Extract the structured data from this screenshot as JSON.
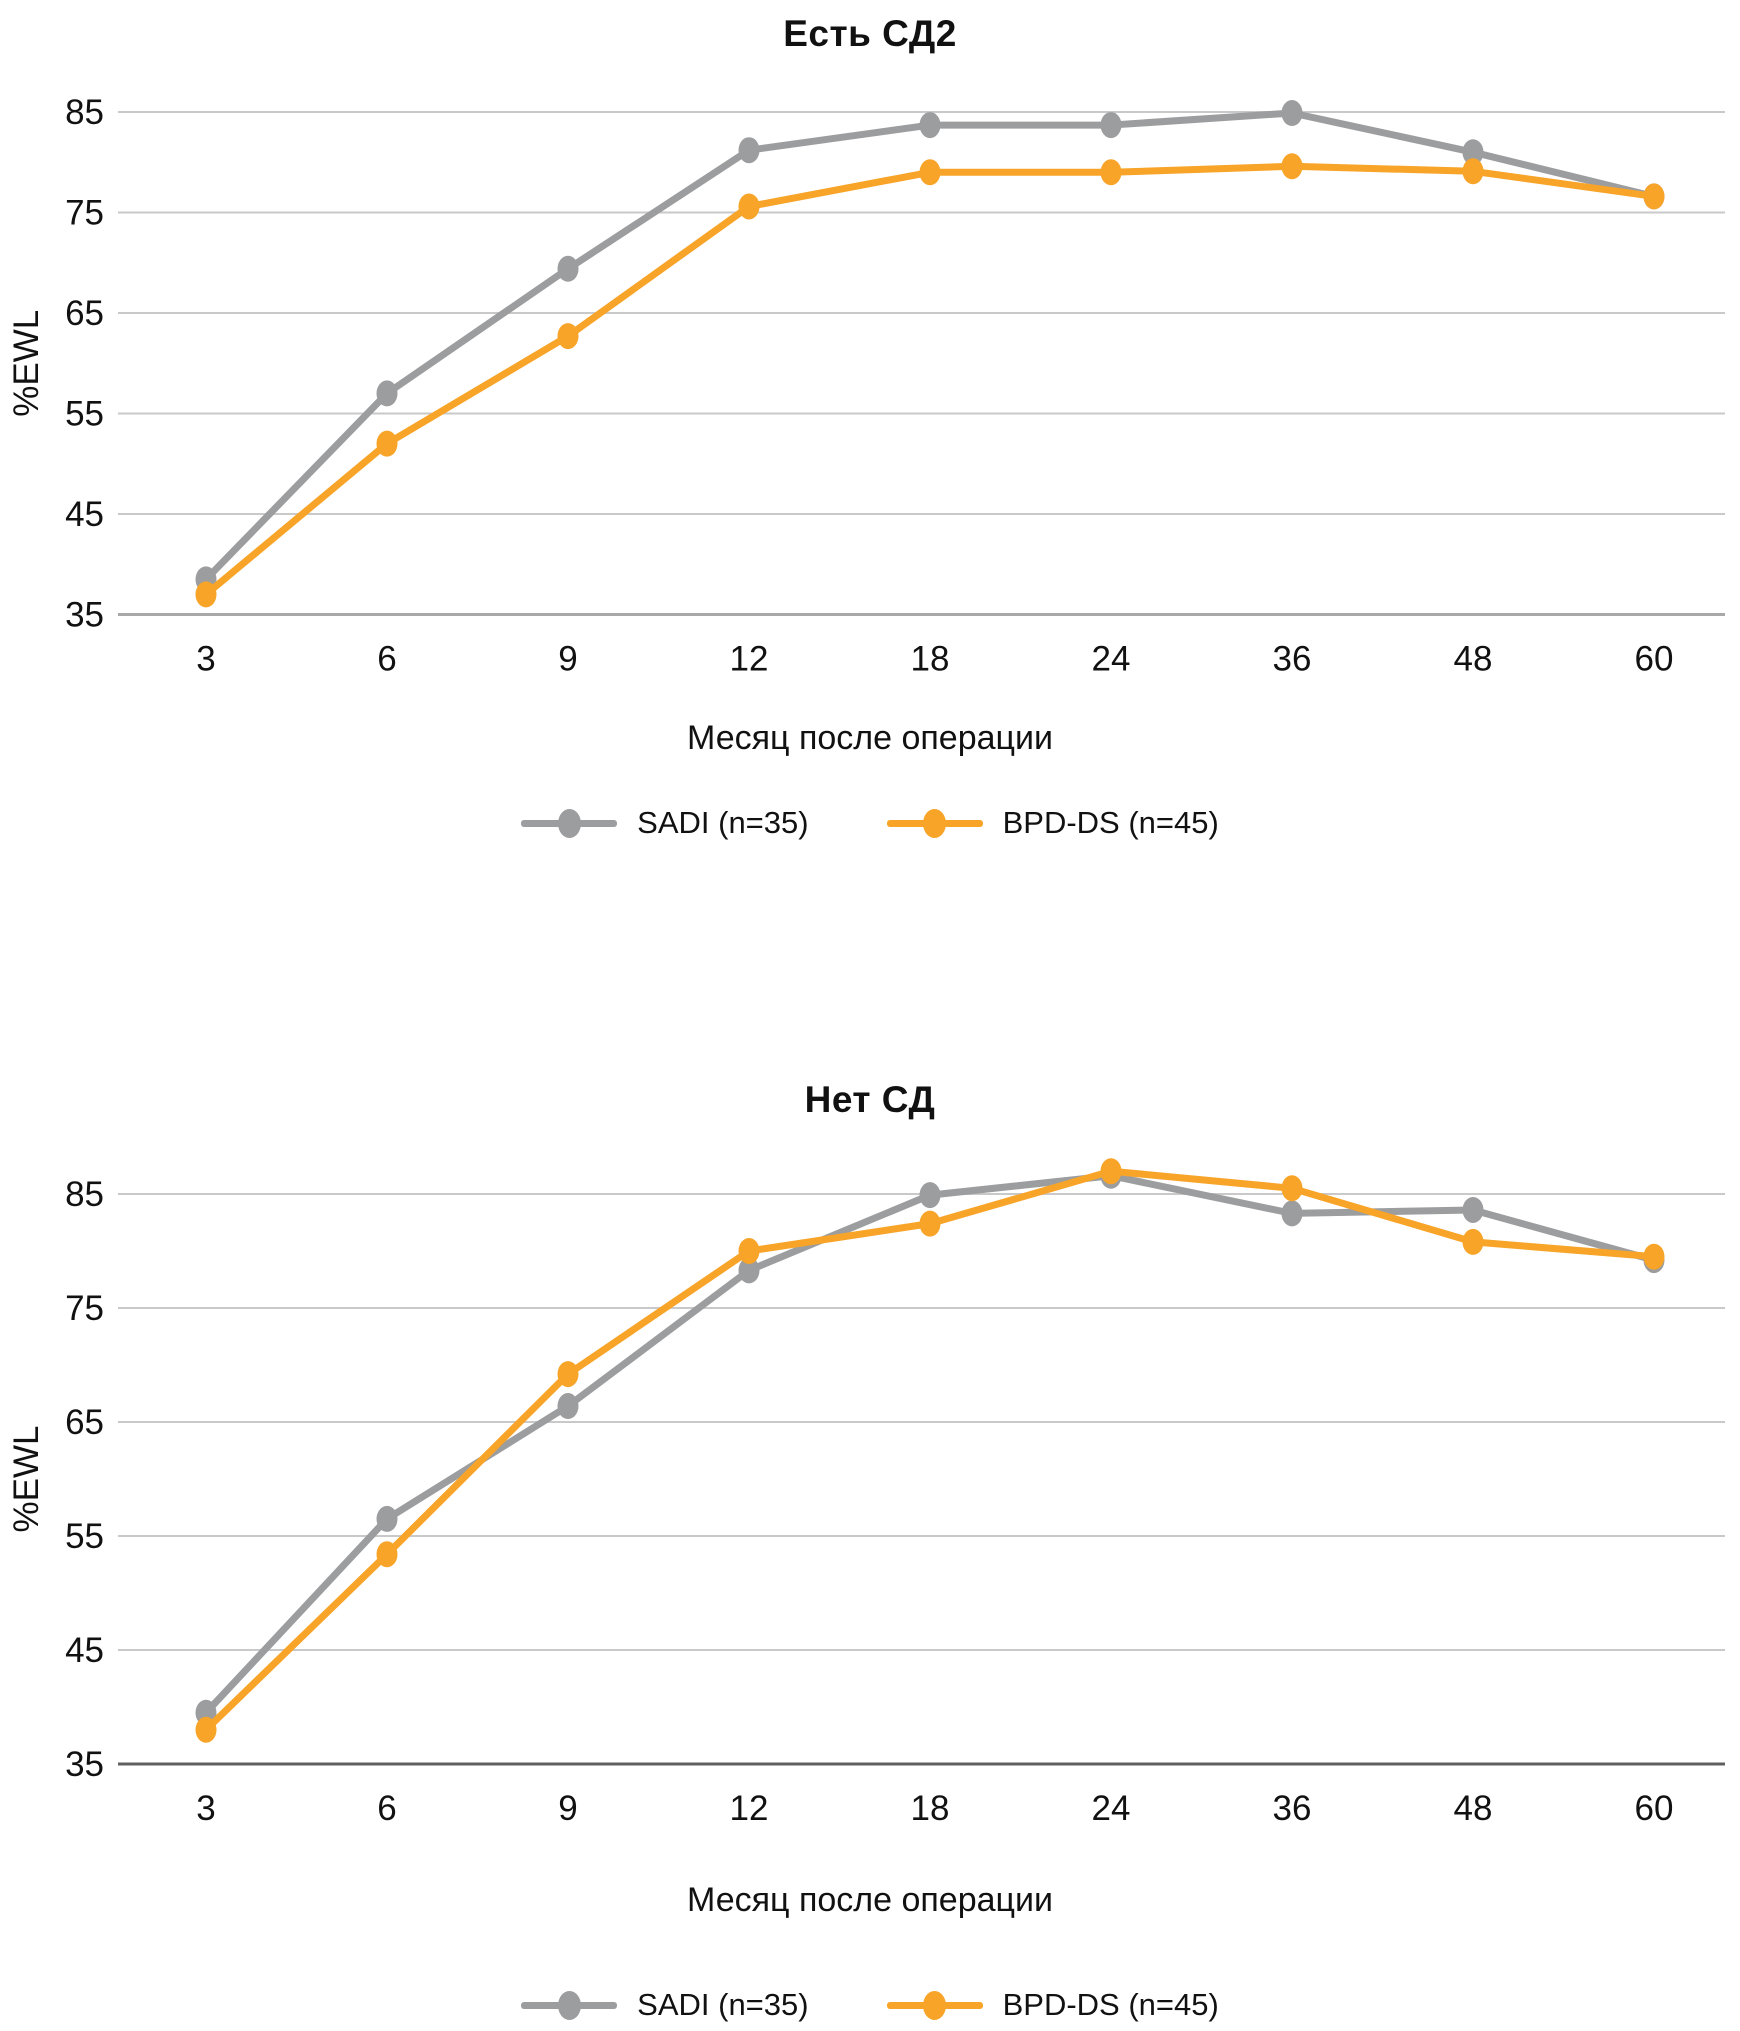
{
  "figure": {
    "background": "#ffffff",
    "text_color": "#111111",
    "gridline_color": "#c9c9c9"
  },
  "chart_data": [
    {
      "type": "line",
      "title": "Есть СД2",
      "xlabel": "Месяц после операции",
      "ylabel": "%EWL",
      "categories": [
        3,
        6,
        9,
        12,
        18,
        24,
        36,
        48,
        60
      ],
      "x_axis_type": "categorical-even-spacing",
      "yticks": [
        35,
        45,
        55,
        65,
        75,
        85
      ],
      "ylim": [
        35,
        88
      ],
      "grid": "horizontal",
      "legend_position": "bottom",
      "series": [
        {
          "name": "SADI (n=35)",
          "color": "#9C9D9F",
          "marker": "ellipse-dot",
          "values": [
            38.5,
            57,
            69.4,
            81.2,
            83.7,
            83.7,
            84.9,
            81,
            76.6
          ]
        },
        {
          "name": "BPD-DS (n=45)",
          "color": "#F7A428",
          "marker": "ellipse-dot",
          "values": [
            37,
            52,
            62.7,
            75.6,
            79,
            79,
            79.6,
            79.1,
            76.6
          ]
        }
      ]
    },
    {
      "type": "line",
      "title": "Нет СД",
      "xlabel": "Месяц после операции",
      "ylabel": "%EWL",
      "categories": [
        3,
        6,
        9,
        12,
        18,
        24,
        36,
        48,
        60
      ],
      "x_axis_type": "categorical-even-spacing",
      "yticks": [
        35,
        45,
        55,
        65,
        75,
        85
      ],
      "ylim": [
        35,
        88
      ],
      "grid": "horizontal",
      "legend_position": "bottom",
      "series": [
        {
          "name": "SADI (n=35)",
          "color": "#9C9D9F",
          "marker": "ellipse-dot",
          "values": [
            39.5,
            56.5,
            66.4,
            78.3,
            84.9,
            86.6,
            83.3,
            83.6,
            79.2
          ]
        },
        {
          "name": "BPD-DS (n=45)",
          "color": "#F7A428",
          "marker": "ellipse-dot",
          "values": [
            38,
            53.4,
            69.2,
            80,
            82.4,
            87,
            85.5,
            80.8,
            79.5
          ]
        }
      ]
    }
  ]
}
